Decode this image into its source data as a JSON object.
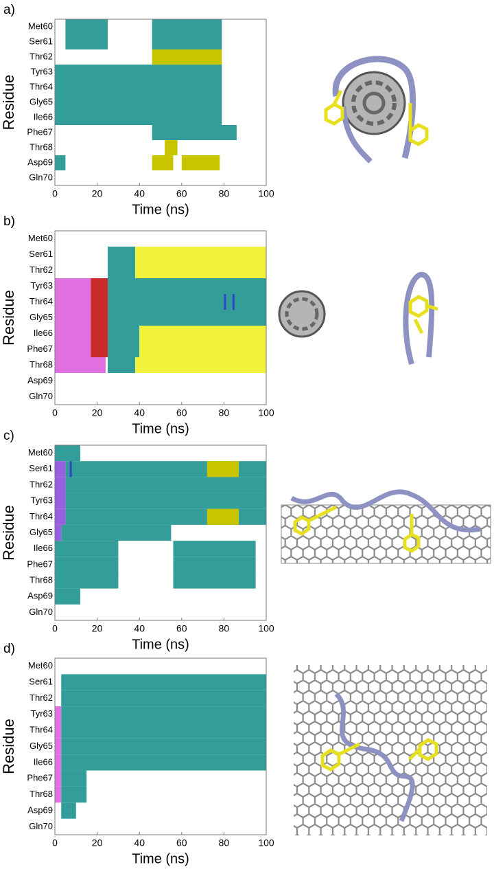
{
  "chart_data": [
    {
      "type": "timeline",
      "label": "a)",
      "xlabel": "Time (ns)",
      "ylabel": "Residue",
      "categories": [
        "Met60",
        "Ser61",
        "Thr62",
        "Tyr63",
        "Thr64",
        "Gly65",
        "Ile66",
        "Phe67",
        "Thr68",
        "Asp69",
        "Gln70"
      ],
      "xlim": [
        0,
        100
      ],
      "xticks": [
        0,
        20,
        40,
        60,
        80,
        100
      ],
      "series": [
        {
          "color": "#339e99",
          "intervals": [
            [
              0,
              5,
              25
            ],
            [
              0,
              46,
              79
            ],
            [
              1,
              5,
              25
            ],
            [
              1,
              46,
              79
            ],
            [
              3,
              0,
              79
            ],
            [
              4,
              0,
              79
            ],
            [
              5,
              0,
              79
            ],
            [
              6,
              0,
              79
            ],
            [
              7,
              46,
              86
            ],
            [
              9,
              0,
              5
            ]
          ]
        },
        {
          "color": "#c8c400",
          "intervals": [
            [
              2,
              46,
              79
            ],
            [
              8,
              52,
              58
            ],
            [
              9,
              46,
              56
            ],
            [
              9,
              60,
              78
            ]
          ]
        }
      ]
    },
    {
      "type": "timeline",
      "label": "b)",
      "xlabel": "Time (ns)",
      "ylabel": "Residue",
      "categories": [
        "Met60",
        "Ser61",
        "Thr62",
        "Tyr63",
        "Thr64",
        "Gly65",
        "Ile66",
        "Phe67",
        "Thr68",
        "Asp69",
        "Gln70"
      ],
      "xlim": [
        0,
        100
      ],
      "xticks": [
        0,
        20,
        40,
        60,
        80,
        100
      ],
      "series": [
        {
          "color": "#339e99",
          "intervals": [
            [
              1,
              25,
              38
            ],
            [
              2,
              25,
              38
            ],
            [
              3,
              25,
              100
            ],
            [
              4,
              25,
              100
            ],
            [
              5,
              25,
              100
            ],
            [
              6,
              25,
              40
            ],
            [
              7,
              25,
              40
            ],
            [
              8,
              25,
              38
            ]
          ]
        },
        {
          "color": "#f2f23a",
          "intervals": [
            [
              1,
              38,
              100
            ],
            [
              2,
              38,
              100
            ],
            [
              6,
              40,
              100
            ],
            [
              7,
              40,
              100
            ],
            [
              8,
              38,
              100
            ]
          ]
        },
        {
          "color": "#e070e0",
          "intervals": [
            [
              3,
              0,
              17
            ],
            [
              4,
              0,
              17
            ],
            [
              5,
              0,
              17
            ],
            [
              6,
              0,
              17
            ],
            [
              7,
              0,
              17
            ],
            [
              8,
              0,
              24
            ]
          ]
        },
        {
          "color": "#cc2b2b",
          "intervals": [
            [
              3,
              17,
              25
            ],
            [
              4,
              17,
              25
            ],
            [
              5,
              17,
              25
            ],
            [
              6,
              17,
              25
            ],
            [
              7,
              17,
              25
            ]
          ]
        },
        {
          "color": "#3346c8",
          "intervals": [
            [
              4,
              80,
              81
            ],
            [
              4,
              84,
              85
            ]
          ]
        }
      ]
    },
    {
      "type": "timeline",
      "label": "c)",
      "xlabel": "Time (ns)",
      "ylabel": "Residue",
      "categories": [
        "Met60",
        "Ser61",
        "Thr62",
        "Tyr63",
        "Thr64",
        "Gly65",
        "Ile66",
        "Phe67",
        "Thr68",
        "Asp69",
        "Gln70"
      ],
      "xlim": [
        0,
        100
      ],
      "xticks": [
        0,
        20,
        40,
        60,
        80,
        100
      ],
      "series": [
        {
          "color": "#339e99",
          "intervals": [
            [
              0,
              0,
              12
            ],
            [
              1,
              5,
              100
            ],
            [
              2,
              5,
              100
            ],
            [
              3,
              5,
              100
            ],
            [
              4,
              5,
              100
            ],
            [
              5,
              3,
              55
            ],
            [
              6,
              0,
              30
            ],
            [
              6,
              56,
              95
            ],
            [
              7,
              0,
              30
            ],
            [
              7,
              56,
              95
            ],
            [
              8,
              0,
              30
            ],
            [
              8,
              56,
              95
            ],
            [
              9,
              0,
              12
            ]
          ]
        },
        {
          "color": "#c8c400",
          "intervals": [
            [
              1,
              72,
              87
            ],
            [
              4,
              72,
              87
            ]
          ]
        },
        {
          "color": "#9a5ee0",
          "intervals": [
            [
              1,
              0,
              5
            ],
            [
              2,
              0,
              5
            ],
            [
              3,
              0,
              5
            ],
            [
              4,
              0,
              5
            ],
            [
              5,
              0,
              3
            ]
          ]
        },
        {
          "color": "#3346c8",
          "intervals": [
            [
              1,
              7,
              8
            ]
          ]
        }
      ]
    },
    {
      "type": "timeline",
      "label": "d)",
      "xlabel": "Time (ns)",
      "ylabel": "Residue",
      "categories": [
        "Met60",
        "Ser61",
        "Thr62",
        "Tyr63",
        "Thr64",
        "Gly65",
        "Ile66",
        "Phe67",
        "Thr68",
        "Asp69",
        "Gln70"
      ],
      "xlim": [
        0,
        100
      ],
      "xticks": [
        0,
        20,
        40,
        60,
        80,
        100
      ],
      "series": [
        {
          "color": "#339e99",
          "intervals": [
            [
              1,
              3,
              100
            ],
            [
              2,
              3,
              100
            ],
            [
              3,
              3,
              100
            ],
            [
              4,
              3,
              100
            ],
            [
              5,
              3,
              100
            ],
            [
              6,
              3,
              100
            ],
            [
              7,
              3,
              15
            ],
            [
              8,
              3,
              15
            ],
            [
              9,
              3,
              10
            ]
          ]
        },
        {
          "color": "#e070e0",
          "intervals": [
            [
              3,
              0,
              3
            ],
            [
              4,
              0,
              3
            ],
            [
              5,
              0,
              3
            ],
            [
              6,
              0,
              3
            ],
            [
              7,
              0,
              3
            ],
            [
              8,
              0,
              3
            ]
          ]
        }
      ]
    }
  ]
}
